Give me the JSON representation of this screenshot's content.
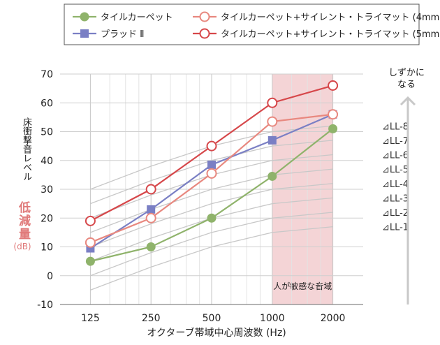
{
  "chart_data": {
    "type": "line",
    "xlabel": "オクターブ帯域中心周波数 (Hz)",
    "ylabel": "床衝撃音レベル",
    "ylabel_emphasis": "低減量",
    "ylabel_unit": "(dB)",
    "categories": [
      "125",
      "250",
      "500",
      "1000",
      "2000"
    ],
    "ylim": [
      -10,
      70
    ],
    "yticks": [
      -10,
      0,
      10,
      20,
      30,
      40,
      50,
      60,
      70
    ],
    "grid": true,
    "legend_position": "top",
    "series": [
      {
        "name": "タイルカーペット",
        "values": [
          5,
          10,
          20,
          34.5,
          51
        ],
        "color": "#8fb36b",
        "marker": "circle-filled"
      },
      {
        "name": "プラッド Ⅱ",
        "values": [
          9.5,
          23,
          38.5,
          47,
          56
        ],
        "color": "#7a7fc4",
        "marker": "square-filled"
      },
      {
        "name": "タイルカーペット+サイレント・トライマット (4mm)",
        "values": [
          11.5,
          20,
          35.5,
          53.5,
          56
        ],
        "color": "#e8887f",
        "marker": "circle-open"
      },
      {
        "name": "タイルカーペット+サイレント・トライマット (5mm)",
        "values": [
          19,
          30,
          45,
          60,
          66
        ],
        "color": "#d6474a",
        "marker": "circle-open"
      }
    ],
    "reference_curves": {
      "labels": [
        "⊿LL-8",
        "⊿LL-7",
        "⊿LL-6",
        "⊿LL-5",
        "⊿LL-4",
        "⊿LL-3",
        "⊿LL-2",
        "⊿LL-1"
      ],
      "values": [
        [
          30,
          38,
          45,
          50,
          52
        ],
        [
          25,
          33,
          40,
          45,
          47
        ],
        [
          20,
          28,
          35,
          40,
          42
        ],
        [
          15,
          23,
          30,
          35,
          37
        ],
        [
          10,
          18,
          25,
          30,
          32
        ],
        [
          5,
          13,
          20,
          25,
          27
        ],
        [
          0,
          8,
          15,
          20,
          22
        ],
        [
          -5,
          3,
          10,
          15,
          17
        ]
      ],
      "color": "#c8c8c8"
    },
    "highlight": {
      "label": "人が敏感な音域",
      "from": "1000",
      "to": "2000",
      "color": "#f4d4d6"
    },
    "annotation": {
      "text": [
        "しずかに",
        "なる"
      ],
      "arrow": "up"
    }
  }
}
